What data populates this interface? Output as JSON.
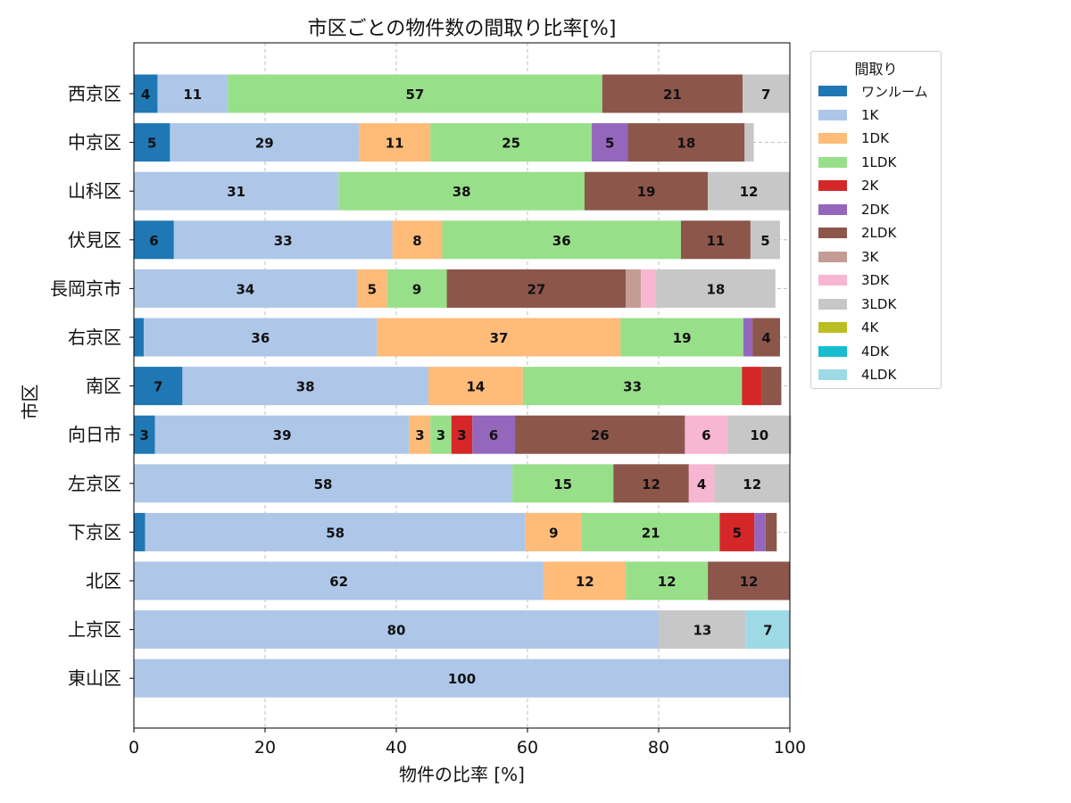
{
  "chart_data": {
    "type": "bar",
    "orientation": "horizontal",
    "stacked": true,
    "title": "市区ごとの物件数の間取り比率[%]",
    "xlabel": "物件の比率 [%]",
    "ylabel": "市区",
    "xlim": [
      0,
      100
    ],
    "xticks": [
      "0",
      "20",
      "40",
      "60",
      "80",
      "100"
    ],
    "grid": true,
    "legend_title": "間取り",
    "legend_position": "outside-top-right",
    "categories": [
      "西京区",
      "中京区",
      "山科区",
      "伏見区",
      "長岡京市",
      "右京区",
      "南区",
      "向日市",
      "左京区",
      "下京区",
      "北区",
      "上京区",
      "東山区"
    ],
    "series": [
      {
        "name": "ワンルーム",
        "color": "#1f77b4",
        "values": [
          3.6,
          5.5,
          0,
          6.1,
          0,
          1.5,
          7.4,
          3.2,
          0,
          1.7,
          0,
          0,
          0
        ]
      },
      {
        "name": "1K",
        "color": "#aec7e8",
        "values": [
          10.7,
          28.8,
          31.2,
          33.3,
          34.0,
          35.6,
          37.5,
          38.8,
          57.7,
          58.0,
          62.5,
          80.0,
          100
        ]
      },
      {
        "name": "1DK",
        "color": "#ffbb78",
        "values": [
          0,
          10.9,
          0,
          7.6,
          4.6,
          37.1,
          14.4,
          3.2,
          0,
          8.6,
          12.5,
          0,
          0
        ]
      },
      {
        "name": "1LDK",
        "color": "#98df8a",
        "values": [
          57.1,
          24.6,
          37.5,
          36.4,
          9.1,
          18.7,
          33.4,
          3.2,
          15.4,
          21.0,
          12.5,
          0,
          0
        ]
      },
      {
        "name": "2K",
        "color": "#d62728",
        "values": [
          0,
          0,
          0,
          0,
          0,
          0,
          3.0,
          3.2,
          0,
          5.3,
          0,
          0,
          0
        ]
      },
      {
        "name": "2DK",
        "color": "#9467bd",
        "values": [
          0,
          5.5,
          0,
          0,
          0,
          1.4,
          0,
          6.5,
          0,
          1.7,
          0,
          0,
          0
        ]
      },
      {
        "name": "2LDK",
        "color": "#8c564b",
        "values": [
          21.4,
          17.8,
          18.8,
          10.6,
          27.3,
          4.2,
          3.0,
          25.9,
          11.5,
          1.7,
          12.5,
          0,
          0
        ]
      },
      {
        "name": "3K",
        "color": "#c49c94",
        "values": [
          0,
          0,
          0,
          0,
          2.3,
          0,
          0,
          0,
          0,
          0,
          0,
          0,
          0
        ]
      },
      {
        "name": "3DK",
        "color": "#f7b6d2",
        "values": [
          0,
          0,
          0,
          0,
          2.3,
          0,
          0,
          6.5,
          3.9,
          0,
          0,
          0,
          0
        ]
      },
      {
        "name": "3LDK",
        "color": "#c7c7c7",
        "values": [
          7.1,
          1.4,
          12.5,
          4.5,
          18.2,
          0,
          0,
          9.7,
          11.5,
          0,
          0,
          13.3,
          0
        ]
      },
      {
        "name": "4K",
        "color": "#bcbd22",
        "values": [
          0,
          0,
          0,
          0,
          0,
          0,
          0,
          0,
          0,
          0,
          0,
          0,
          0
        ]
      },
      {
        "name": "4DK",
        "color": "#17becf",
        "values": [
          0,
          0,
          0,
          0,
          0,
          0,
          0,
          0,
          0,
          0,
          0,
          0,
          0
        ]
      },
      {
        "name": "4LDK",
        "color": "#9edae5",
        "values": [
          0,
          0,
          0,
          0,
          0,
          0,
          0,
          0,
          0,
          0,
          0,
          6.7,
          0
        ]
      }
    ],
    "data_labels": [
      [
        "4",
        "11",
        "",
        "57",
        "",
        "",
        "21",
        "",
        "",
        "7",
        "",
        "",
        ""
      ],
      [
        "5",
        "29",
        "11",
        "25",
        "",
        "5",
        "18",
        "",
        "",
        "",
        "",
        "",
        ""
      ],
      [
        "",
        "31",
        "",
        "38",
        "",
        "",
        "19",
        "",
        "",
        "12",
        "",
        "",
        ""
      ],
      [
        "6",
        "33",
        "8",
        "36",
        "",
        "",
        "11",
        "",
        "",
        "5",
        "",
        "",
        ""
      ],
      [
        "",
        "34",
        "5",
        "9",
        "",
        "",
        "27",
        "",
        "",
        "18",
        "",
        "",
        ""
      ],
      [
        "",
        "36",
        "37",
        "19",
        "",
        "",
        "4",
        "",
        "",
        "",
        "",
        "",
        ""
      ],
      [
        "7",
        "38",
        "14",
        "33",
        "",
        "",
        "",
        "",
        "",
        "",
        "",
        "",
        ""
      ],
      [
        "3",
        "39",
        "3",
        "3",
        "3",
        "6",
        "26",
        "",
        "6",
        "10",
        "",
        "",
        ""
      ],
      [
        "",
        "58",
        "",
        "15",
        "",
        "",
        "12",
        "",
        "4",
        "12",
        "",
        "",
        ""
      ],
      [
        "",
        "58",
        "9",
        "21",
        "5",
        "",
        "",
        "",
        "",
        "",
        "",
        "",
        ""
      ],
      [
        "",
        "62",
        "12",
        "12",
        "",
        "",
        "12",
        "",
        "",
        "",
        "",
        "",
        ""
      ],
      [
        "",
        "80",
        "",
        "",
        "",
        "",
        "",
        "",
        "",
        "13",
        "",
        "",
        "7"
      ],
      [
        "",
        "100",
        "",
        "",
        "",
        "",
        "",
        "",
        "",
        "",
        "",
        "",
        ""
      ]
    ]
  }
}
